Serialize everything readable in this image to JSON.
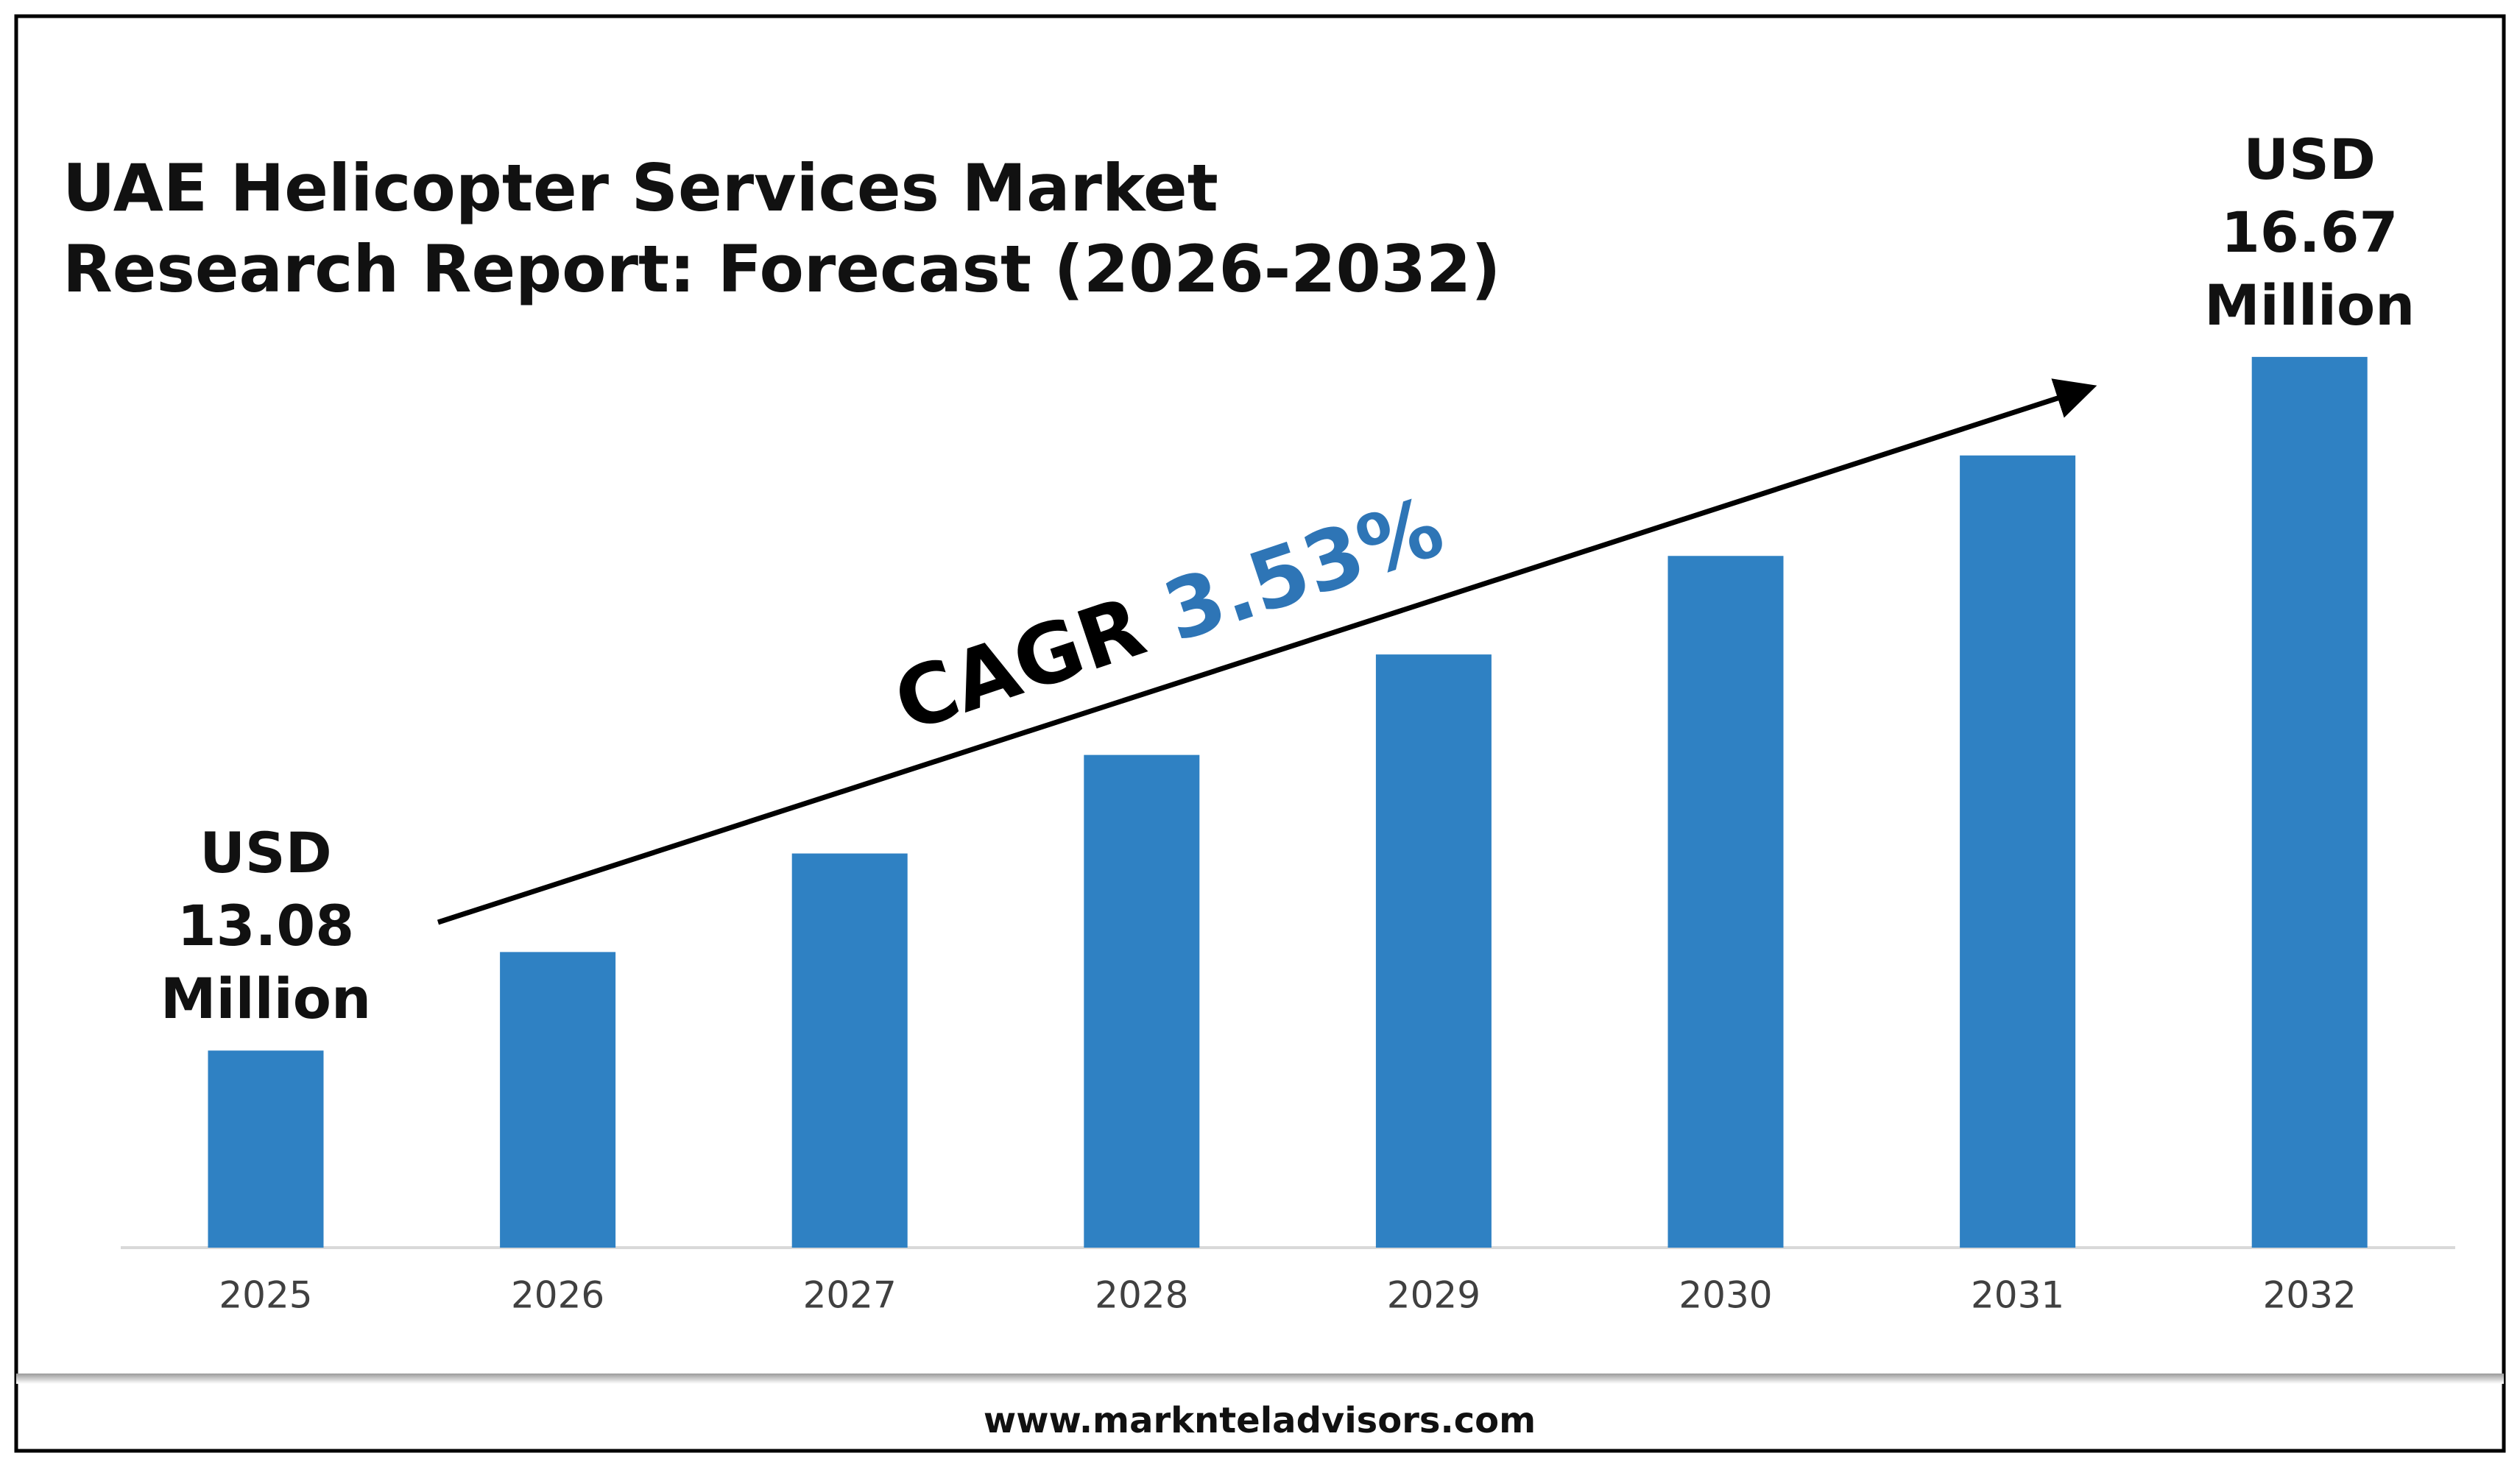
{
  "chart_data": {
    "type": "bar",
    "title": [
      "UAE Helicopter Services Market",
      "Research Report: Forecast (2026-2032)"
    ],
    "categories": [
      "2025",
      "2026",
      "2027",
      "2028",
      "2029",
      "2030",
      "2031",
      "2032"
    ],
    "values": [
      13.08,
      13.59,
      14.1,
      14.61,
      15.13,
      15.64,
      16.16,
      16.67
    ],
    "value_labels": [
      [
        "USD",
        "13.08",
        "Million"
      ],
      null,
      null,
      null,
      null,
      null,
      null,
      [
        "USD",
        "16.67",
        "Million"
      ]
    ],
    "color": "#2f81c3",
    "ylim": [
      12.06,
      17.5
    ],
    "annotation": {
      "label": "CAGR",
      "value": "3.53%",
      "value_color": "#2e75b6"
    },
    "footer": "www.marknteladvisors.com"
  }
}
